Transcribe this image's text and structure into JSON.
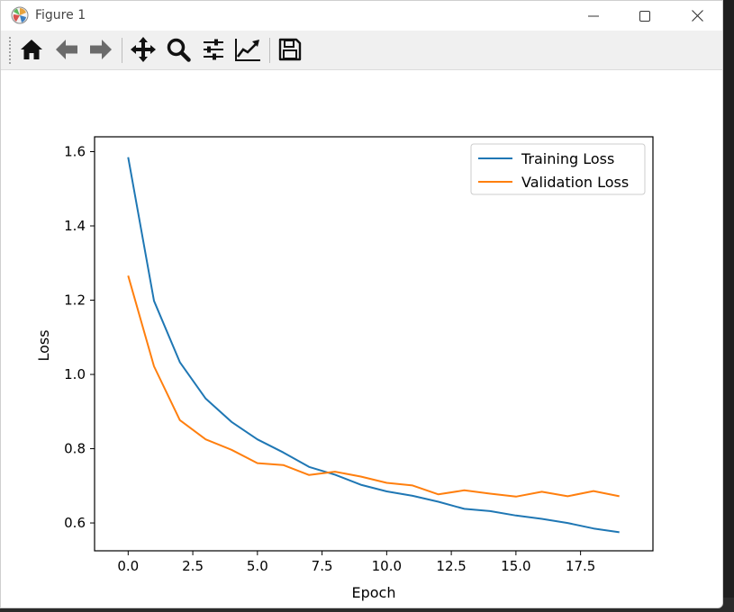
{
  "window": {
    "title": "Figure 1",
    "controls": {
      "minimize": "minimize",
      "maximize": "maximize",
      "close": "close"
    }
  },
  "toolbar": {
    "buttons": [
      {
        "name": "home",
        "icon": "home-icon"
      },
      {
        "name": "back",
        "icon": "arrow-left-icon"
      },
      {
        "name": "forward",
        "icon": "arrow-right-icon"
      },
      {
        "name": "pan",
        "icon": "move-icon"
      },
      {
        "name": "zoom",
        "icon": "zoom-icon"
      },
      {
        "name": "subplots",
        "icon": "sliders-icon"
      },
      {
        "name": "customize",
        "icon": "line-chart-icon"
      },
      {
        "name": "save",
        "icon": "save-icon"
      }
    ]
  },
  "chart_data": {
    "type": "line",
    "title": "",
    "xlabel": "Epoch",
    "ylabel": "Loss",
    "xlim": [
      -1.3,
      20.3
    ],
    "ylim": [
      0.525,
      1.64
    ],
    "xticks": [
      "0.0",
      "2.5",
      "5.0",
      "7.5",
      "10.0",
      "12.5",
      "15.0",
      "17.5"
    ],
    "yticks": [
      "0.6",
      "0.8",
      "1.0",
      "1.2",
      "1.4",
      "1.6"
    ],
    "grid": false,
    "legend_position": "top-right",
    "x": [
      0,
      1,
      2,
      3,
      4,
      5,
      6,
      7,
      8,
      9,
      10,
      11,
      12,
      13,
      14,
      15,
      16,
      17,
      18,
      19
    ],
    "series": [
      {
        "name": "Training Loss",
        "color": "#1f77b4",
        "values": [
          1.585,
          1.198,
          1.033,
          0.935,
          0.872,
          0.825,
          0.79,
          0.751,
          0.73,
          0.703,
          0.685,
          0.673,
          0.657,
          0.638,
          0.632,
          0.62,
          0.611,
          0.6,
          0.585,
          0.575
        ]
      },
      {
        "name": "Validation Loss",
        "color": "#ff7f0e",
        "values": [
          1.266,
          1.022,
          0.877,
          0.825,
          0.797,
          0.761,
          0.756,
          0.729,
          0.738,
          0.725,
          0.708,
          0.701,
          0.677,
          0.688,
          0.679,
          0.671,
          0.684,
          0.672,
          0.686,
          0.672
        ]
      }
    ]
  }
}
